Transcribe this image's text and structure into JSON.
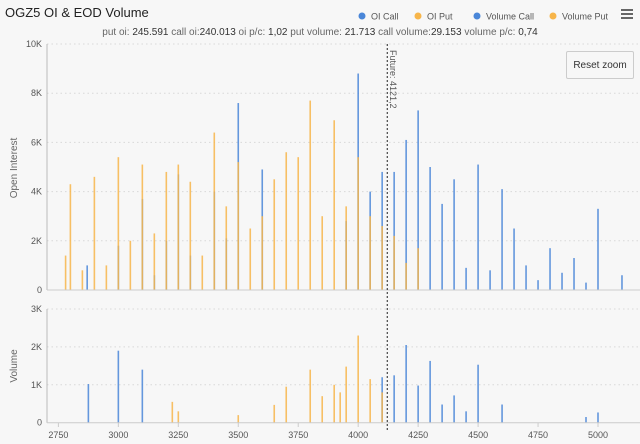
{
  "title": "OGZ5 OI & EOD Volume",
  "subtitle": {
    "put_oi_label": "put oi:",
    "put_oi": "245.591",
    "call_oi_label": "call oi:",
    "call_oi": "240.013",
    "oi_pc_label": "oi p/c:",
    "oi_pc": "1,02",
    "put_volume_label": "put volume:",
    "put_volume": "21.713",
    "call_volume_label": "call volume:",
    "call_volume": "29.153",
    "volume_pc_label": "volume p/c:",
    "volume_pc": "0,74"
  },
  "reset_zoom_label": "Reset zoom",
  "menu_icon": "hamburger-menu-icon",
  "colors": {
    "call": "#4a86d8",
    "put": "#f7b54a"
  },
  "chart_data": [
    {
      "type": "bar",
      "ylabel": "Open Interest",
      "ylim": [
        0,
        10000
      ],
      "yticks": [
        "0",
        "2K",
        "4K",
        "6K",
        "8K",
        "10K"
      ],
      "grid": true,
      "legend": "top-right",
      "future_line": {
        "x": 4121.2,
        "label": "Future: 4121,2"
      },
      "series": [
        {
          "name": "OI Call",
          "color": "#4a86d8",
          "points": [
            [
              2870,
              1000
            ],
            [
              3000,
              1800
            ],
            [
              3100,
              3700
            ],
            [
              3150,
              600
            ],
            [
              3200,
              2000
            ],
            [
              3250,
              4700
            ],
            [
              3300,
              1400
            ],
            [
              3400,
              4000
            ],
            [
              3450,
              2100
            ],
            [
              3500,
              7600
            ],
            [
              3600,
              4900
            ],
            [
              3950,
              2800
            ],
            [
              4000,
              8800
            ],
            [
              4050,
              4000
            ],
            [
              4100,
              4800
            ],
            [
              4150,
              4800
            ],
            [
              4200,
              6100
            ],
            [
              4250,
              7300
            ],
            [
              4300,
              5000
            ],
            [
              4350,
              3500
            ],
            [
              4400,
              4500
            ],
            [
              4450,
              900
            ],
            [
              4500,
              5100
            ],
            [
              4550,
              800
            ],
            [
              4600,
              4100
            ],
            [
              4650,
              2500
            ],
            [
              4700,
              1000
            ],
            [
              4750,
              400
            ],
            [
              4800,
              1700
            ],
            [
              4850,
              700
            ],
            [
              4900,
              1300
            ],
            [
              4950,
              300
            ],
            [
              5000,
              3300
            ],
            [
              5100,
              600
            ]
          ]
        },
        {
          "name": "OI Put",
          "color": "#f7b54a",
          "points": [
            [
              2780,
              1400
            ],
            [
              2800,
              4300
            ],
            [
              2850,
              800
            ],
            [
              2900,
              4600
            ],
            [
              2950,
              1000
            ],
            [
              3000,
              5400
            ],
            [
              3050,
              2000
            ],
            [
              3100,
              5100
            ],
            [
              3150,
              2300
            ],
            [
              3200,
              4800
            ],
            [
              3250,
              5100
            ],
            [
              3300,
              4400
            ],
            [
              3350,
              1400
            ],
            [
              3400,
              6400
            ],
            [
              3450,
              3400
            ],
            [
              3500,
              5200
            ],
            [
              3550,
              2500
            ],
            [
              3600,
              3000
            ],
            [
              3650,
              4500
            ],
            [
              3700,
              5600
            ],
            [
              3750,
              5400
            ],
            [
              3800,
              7700
            ],
            [
              3850,
              3000
            ],
            [
              3900,
              6900
            ],
            [
              3950,
              3400
            ],
            [
              4000,
              5400
            ],
            [
              4050,
              3000
            ],
            [
              4100,
              2600
            ],
            [
              4150,
              2200
            ],
            [
              4200,
              1100
            ],
            [
              4250,
              1700
            ]
          ]
        }
      ]
    },
    {
      "type": "bar",
      "ylabel": "Volume",
      "ylim": [
        0,
        3000
      ],
      "yticks": [
        "0",
        "1K",
        "2K",
        "3K"
      ],
      "xlim": [
        2700,
        5150
      ],
      "xticks": [
        "2750",
        "3000",
        "3250",
        "3500",
        "3750",
        "4000",
        "4250",
        "4500",
        "4750",
        "5000"
      ],
      "grid": true,
      "series": [
        {
          "name": "Volume Call",
          "color": "#4a86d8",
          "points": [
            [
              2875,
              1020
            ],
            [
              3000,
              1900
            ],
            [
              3100,
              1400
            ],
            [
              4100,
              1200
            ],
            [
              4150,
              1250
            ],
            [
              4200,
              2050
            ],
            [
              4250,
              980
            ],
            [
              4300,
              1630
            ],
            [
              4350,
              480
            ],
            [
              4400,
              720
            ],
            [
              4450,
              300
            ],
            [
              4500,
              1530
            ],
            [
              4600,
              480
            ],
            [
              4950,
              150
            ],
            [
              5000,
              270
            ]
          ]
        },
        {
          "name": "Volume Put",
          "color": "#f7b54a",
          "points": [
            [
              3225,
              550
            ],
            [
              3250,
              300
            ],
            [
              3500,
              200
            ],
            [
              3650,
              470
            ],
            [
              3700,
              950
            ],
            [
              3800,
              1400
            ],
            [
              3850,
              700
            ],
            [
              3900,
              1000
            ],
            [
              3925,
              800
            ],
            [
              3950,
              1480
            ],
            [
              4000,
              2300
            ],
            [
              4050,
              1150
            ],
            [
              4100,
              800
            ]
          ]
        }
      ]
    }
  ]
}
